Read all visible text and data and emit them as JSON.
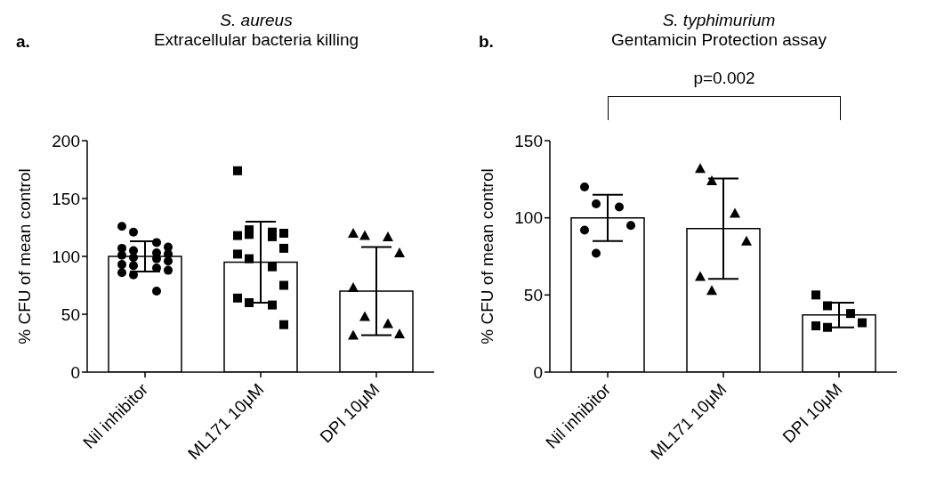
{
  "chart_data": [
    {
      "type": "bar",
      "title": "S. aureus",
      "subtitle": "Extracellular bacteria killing",
      "ylabel": "% CFU of mean control",
      "annotations": [
        "a."
      ],
      "categories": [
        "Nil inhibitor",
        "ML171 10μM",
        "DPI 10μM"
      ],
      "ylim": [
        0,
        200
      ],
      "yticks": [
        0,
        50,
        100,
        150,
        200
      ],
      "grid": false,
      "legend": false,
      "series": [
        {
          "color": "#ffffff",
          "values": [
            100,
            95,
            70
          ],
          "errors": [
            13,
            35,
            38
          ]
        },
        {
          "type": "scatter",
          "marker": "circle",
          "color": "#000000",
          "x": [
            "Nil inhibitor",
            "Nil inhibitor",
            "Nil inhibitor",
            "Nil inhibitor",
            "Nil inhibitor",
            "Nil inhibitor",
            "Nil inhibitor",
            "Nil inhibitor",
            "Nil inhibitor",
            "Nil inhibitor",
            "Nil inhibitor",
            "Nil inhibitor",
            "Nil inhibitor",
            "Nil inhibitor",
            "Nil inhibitor",
            "Nil inhibitor",
            "Nil inhibitor",
            "Nil inhibitor",
            "Nil inhibitor"
          ],
          "values": [
            126,
            121,
            112,
            108,
            107,
            105,
            103,
            102,
            101,
            99,
            98,
            96,
            93,
            92,
            90,
            88,
            86,
            84,
            70
          ]
        },
        {
          "type": "scatter",
          "marker": "square",
          "color": "#000000",
          "x": [
            "ML171 10μM",
            "ML171 10μM",
            "ML171 10μM",
            "ML171 10μM",
            "ML171 10μM",
            "ML171 10μM",
            "ML171 10μM",
            "ML171 10μM",
            "ML171 10μM",
            "ML171 10μM",
            "ML171 10μM",
            "ML171 10μM",
            "ML171 10μM",
            "ML171 10μM",
            "ML171 10μM",
            "ML171 10μM"
          ],
          "values": [
            174,
            123,
            121,
            120,
            118,
            119,
            117,
            107,
            102,
            98,
            91,
            75,
            64,
            60,
            58,
            41
          ]
        },
        {
          "type": "scatter",
          "marker": "triangle",
          "color": "#000000",
          "x": [
            "DPI 10μM",
            "DPI 10μM",
            "DPI 10μM",
            "DPI 10μM",
            "DPI 10μM",
            "DPI 10μM",
            "DPI 10μM",
            "DPI 10μM",
            "DPI 10μM"
          ],
          "values": [
            120,
            118,
            117,
            103,
            73,
            48,
            42,
            33,
            32
          ]
        }
      ]
    },
    {
      "type": "bar",
      "title": "S. typhimurium",
      "subtitle": "Gentamicin Protection assay",
      "ylabel": "% CFU of mean control",
      "annotations": [
        "b.",
        "p=0.002"
      ],
      "categories": [
        "Nil inhibitor",
        "ML171 10μM",
        "DPI 10μM"
      ],
      "ylim": [
        0,
        150
      ],
      "yticks": [
        0,
        50,
        100,
        150
      ],
      "grid": false,
      "legend": false,
      "series": [
        {
          "color": "#ffffff",
          "values": [
            100,
            93,
            37
          ],
          "errors": [
            15,
            32.5,
            8
          ]
        },
        {
          "type": "scatter",
          "marker": "circle",
          "color": "#000000",
          "x": [
            "Nil inhibitor",
            "Nil inhibitor",
            "Nil inhibitor",
            "Nil inhibitor",
            "Nil inhibitor",
            "Nil inhibitor"
          ],
          "values": [
            120,
            109,
            107,
            95,
            92,
            77
          ]
        },
        {
          "type": "scatter",
          "marker": "triangle",
          "color": "#000000",
          "x": [
            "ML171 10μM",
            "ML171 10μM",
            "ML171 10μM",
            "ML171 10μM",
            "ML171 10μM",
            "ML171 10μM"
          ],
          "values": [
            132,
            124,
            103,
            85,
            62,
            53
          ]
        },
        {
          "type": "scatter",
          "marker": "square",
          "color": "#000000",
          "x": [
            "DPI 10μM",
            "DPI 10μM",
            "DPI 10μM",
            "DPI 10μM",
            "DPI 10μM",
            "DPI 10μM"
          ],
          "values": [
            50,
            43,
            38,
            32,
            30,
            29
          ]
        }
      ]
    }
  ]
}
